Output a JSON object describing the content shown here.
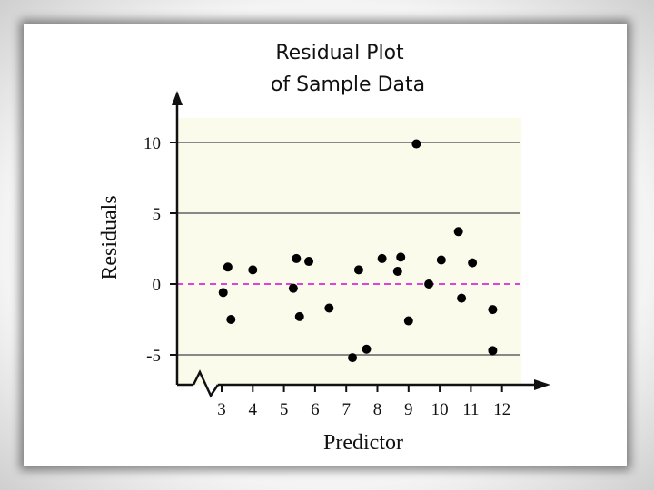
{
  "chart_data": {
    "type": "scatter",
    "title_line1": "Residual Plot",
    "title_line2": "of Sample Data",
    "xlabel": "Predictor",
    "ylabel": "Residuals",
    "xlim": [
      2,
      12.6
    ],
    "ylim": [
      -7,
      13
    ],
    "x_ticks": [
      3,
      4,
      5,
      6,
      7,
      8,
      9,
      10,
      11,
      12
    ],
    "y_ticks": [
      10,
      5,
      0,
      -5
    ],
    "x_tick_labels": [
      "3",
      "4",
      "5",
      "6",
      "7",
      "8",
      "9",
      "10",
      "11",
      "12"
    ],
    "y_tick_labels": [
      "10",
      "5",
      "0",
      "-5"
    ],
    "axis_break": true,
    "grid": true,
    "zero_line_style": "dashed",
    "colors": {
      "plot_background": "#fbfbec",
      "gridline": "#888888",
      "zero_line": "#e040e0",
      "point": "#000000"
    },
    "points": [
      {
        "x": 3.05,
        "y": -0.6
      },
      {
        "x": 3.2,
        "y": 1.2
      },
      {
        "x": 3.3,
        "y": -2.5
      },
      {
        "x": 4.0,
        "y": 1.0
      },
      {
        "x": 5.3,
        "y": -0.3
      },
      {
        "x": 5.4,
        "y": 1.8
      },
      {
        "x": 5.5,
        "y": -2.3
      },
      {
        "x": 5.8,
        "y": 1.6
      },
      {
        "x": 6.45,
        "y": -1.7
      },
      {
        "x": 7.2,
        "y": -5.2
      },
      {
        "x": 7.4,
        "y": 1.0
      },
      {
        "x": 7.65,
        "y": -4.6
      },
      {
        "x": 8.15,
        "y": 1.8
      },
      {
        "x": 8.65,
        "y": 0.9
      },
      {
        "x": 8.75,
        "y": 1.9
      },
      {
        "x": 9.0,
        "y": -2.6
      },
      {
        "x": 9.25,
        "y": 9.9
      },
      {
        "x": 9.65,
        "y": 0.0
      },
      {
        "x": 10.05,
        "y": 1.7
      },
      {
        "x": 10.6,
        "y": 3.7
      },
      {
        "x": 10.7,
        "y": -1.0
      },
      {
        "x": 11.05,
        "y": 1.5
      },
      {
        "x": 11.7,
        "y": -1.8
      },
      {
        "x": 11.7,
        "y": -4.7
      }
    ]
  }
}
